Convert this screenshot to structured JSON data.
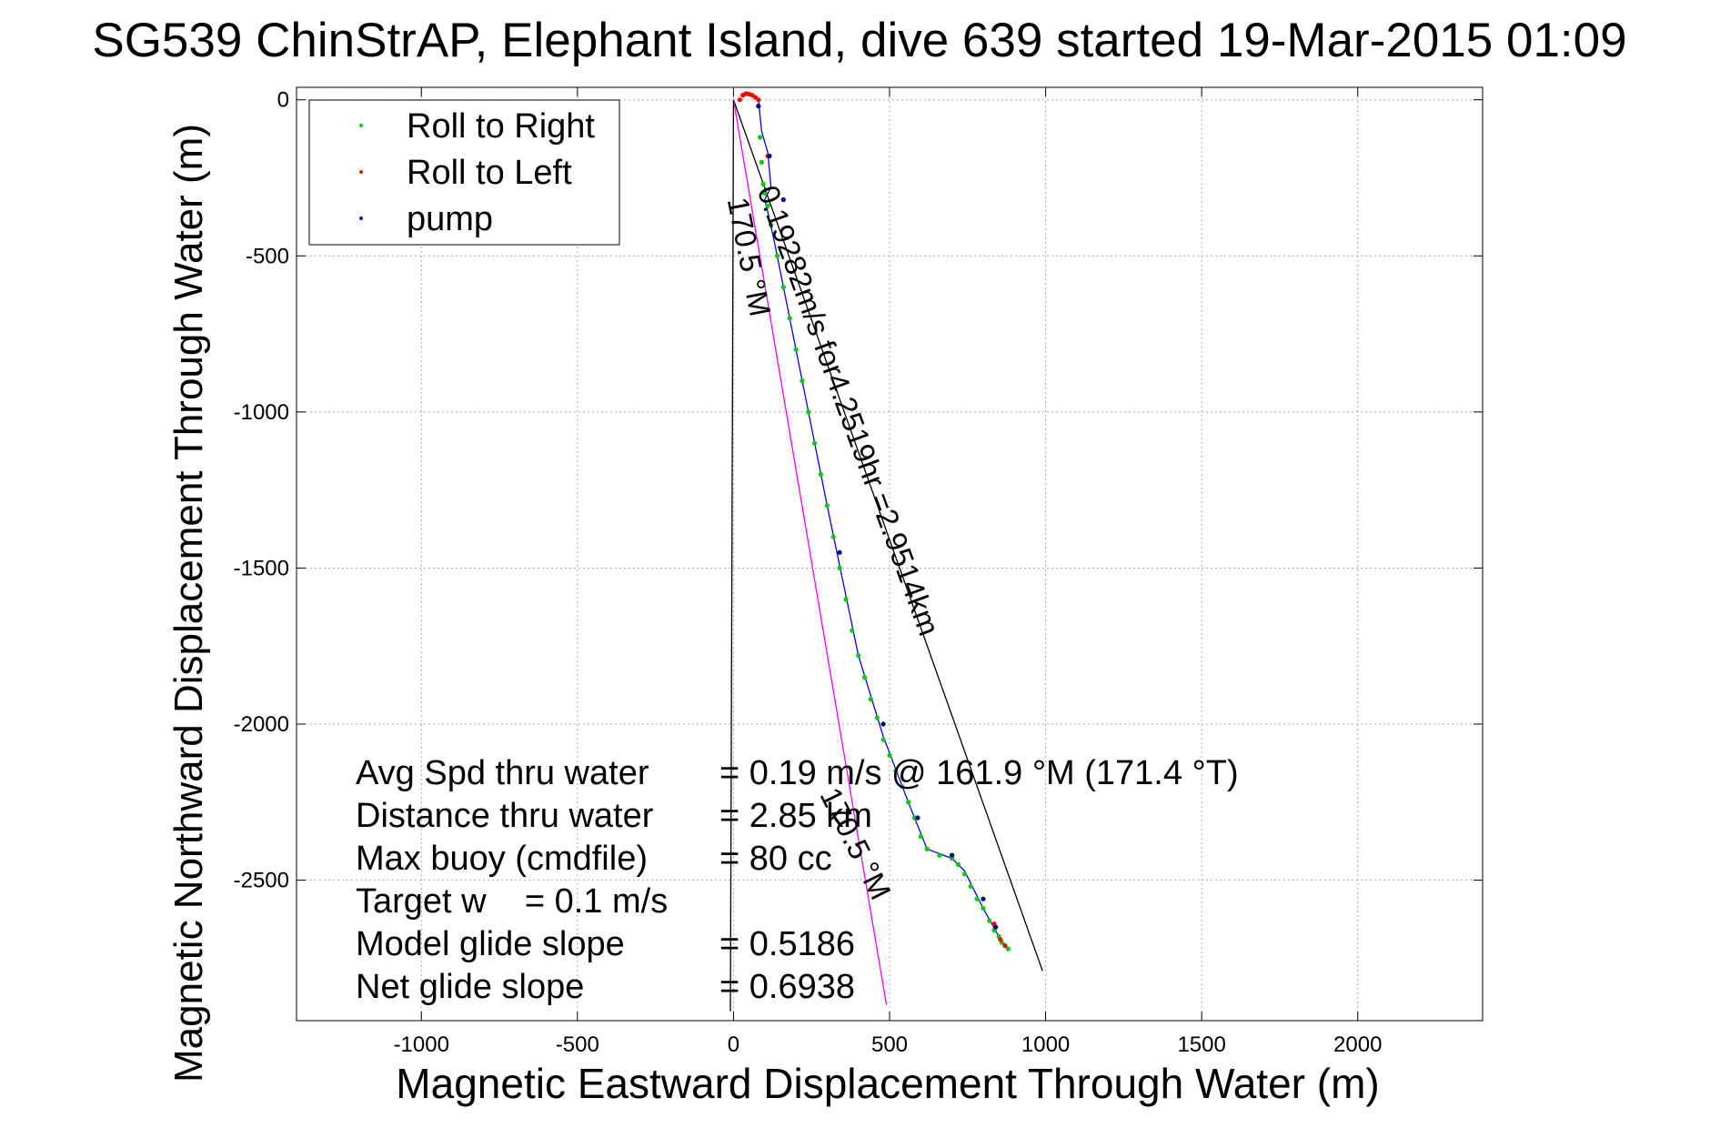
{
  "chart_data": {
    "type": "scatter",
    "title": "SG539 ChinStrAP, Elephant Island, dive 639 started 19-Mar-2015 01:09",
    "xlabel": "Magnetic Eastward Displacement Through Water (m)",
    "ylabel": "Magnetic Northward Displacement Through Water (m)",
    "xlim": [
      -1400,
      2400
    ],
    "ylim": [
      -2950,
      40
    ],
    "xticks": [
      -1000,
      -500,
      0,
      500,
      1000,
      1500,
      2000
    ],
    "yticks": [
      0,
      -500,
      -1000,
      -1500,
      -2000,
      -2500
    ],
    "xtick_labels": [
      "-1000",
      "-500",
      "0",
      "500",
      "1000",
      "1500",
      "2000"
    ],
    "ytick_labels": [
      "0",
      "-500",
      "-1000",
      "-1500",
      "-2000",
      "-2500"
    ],
    "grid": true,
    "legend": {
      "placement": "top-left",
      "entries": [
        {
          "label": "Roll to Right",
          "color": "#00cc00"
        },
        {
          "label": "Roll to Left",
          "color": "#ff0000"
        },
        {
          "label": "pump",
          "color": "#00008b"
        }
      ]
    },
    "series": [
      {
        "name": "Roll to Right",
        "color": "#00cc00",
        "x": [
          80,
          85,
          90,
          95,
          100,
          110,
          120,
          140,
          160,
          180,
          200,
          220,
          240,
          260,
          280,
          300,
          320,
          340,
          360,
          380,
          400,
          420,
          440,
          460,
          480,
          500,
          520,
          540,
          560,
          580,
          600,
          620,
          660,
          700,
          720,
          740,
          760,
          780,
          800,
          820,
          835,
          850,
          860,
          870,
          880
        ],
        "y": [
          -20,
          -120,
          -200,
          -270,
          -300,
          -340,
          -400,
          -500,
          -600,
          -700,
          -800,
          -900,
          -1000,
          -1100,
          -1200,
          -1300,
          -1400,
          -1500,
          -1600,
          -1700,
          -1780,
          -1850,
          -1920,
          -1980,
          -2050,
          -2100,
          -2150,
          -2200,
          -2250,
          -2300,
          -2360,
          -2400,
          -2420,
          -2430,
          -2450,
          -2480,
          -2520,
          -2560,
          -2590,
          -2630,
          -2660,
          -2680,
          -2700,
          -2710,
          -2720
        ]
      },
      {
        "name": "Roll to Left",
        "color": "#ff0000",
        "x": [
          20,
          30,
          40,
          50,
          60,
          70,
          80,
          110,
          835,
          855,
          870
        ],
        "y": [
          0,
          15,
          20,
          18,
          15,
          8,
          0,
          -180,
          -2640,
          -2690,
          -2710
        ]
      },
      {
        "name": "pump",
        "color": "#00008b",
        "x": [
          80,
          115,
          160,
          340,
          480,
          590,
          700,
          800,
          840
        ],
        "y": [
          -20,
          -180,
          -320,
          -1450,
          -2000,
          -2300,
          -2420,
          -2560,
          -2650
        ]
      }
    ],
    "lines": [
      {
        "name": "glider track",
        "color": "#0000ff",
        "x": [
          80,
          85,
          90,
          110,
          120,
          100,
          110,
          130,
          200,
          300,
          400,
          480,
          560,
          620,
          700,
          740,
          800,
          850,
          880
        ],
        "y": [
          0,
          -50,
          -100,
          -170,
          -280,
          -320,
          -360,
          -450,
          -800,
          -1300,
          -1780,
          -2040,
          -2250,
          -2400,
          -2430,
          -2470,
          -2590,
          -2680,
          -2720
        ]
      },
      {
        "name": "depth-average current",
        "color": "#000000",
        "x": [
          0,
          990
        ],
        "y": [
          0,
          -2790
        ]
      },
      {
        "name": "heading 170.5 M",
        "color": "#ff00ff",
        "x": [
          0,
          490
        ],
        "y": [
          0,
          -2900
        ]
      },
      {
        "name": "descent line",
        "color": "#000000",
        "x": [
          0,
          -10
        ],
        "y": [
          0,
          -2920
        ]
      }
    ],
    "annotations": {
      "current_label": "0.19282m/s for4.2519hr =2.9514km",
      "heading_label_top": "170.5 °M",
      "heading_label_bottom": "170.5 °M",
      "summary_labels": [
        "Avg Spd thru water",
        "Distance thru water",
        "Max buoy (cmdfile)",
        "Target w    = 0.1 m/s",
        "Model glide slope",
        "Net glide slope"
      ],
      "summary_values": [
        "=  0.19 m/s @ 161.9 °M (171.4 °T)",
        "=  2.85 km",
        "= 80 cc",
        "",
        "= 0.5186",
        "= 0.6938"
      ]
    }
  }
}
